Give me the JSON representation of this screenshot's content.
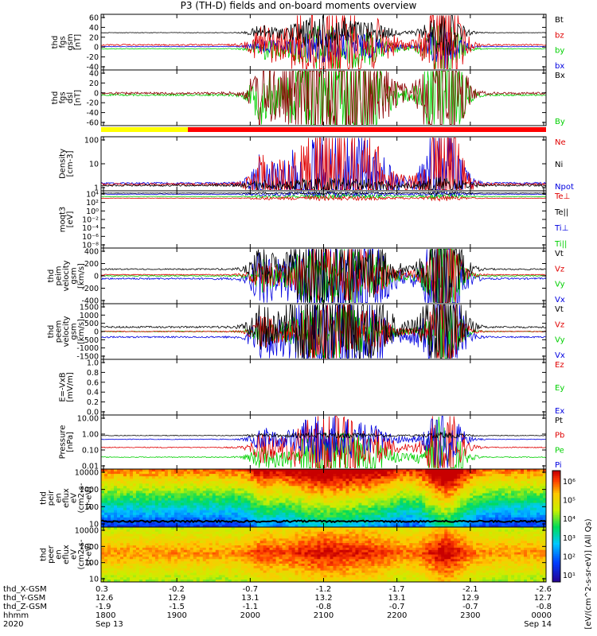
{
  "title": "P3 (TH-D) fields and on-board moments overview",
  "chart_data": {
    "type": "line",
    "panels": [
      {
        "id": "fgs-gsm",
        "ylabel": [
          "thd",
          "fgs",
          "gsm",
          "[nT]"
        ],
        "yticks": [
          "60",
          "40",
          "20",
          "0",
          "-20",
          "-40"
        ],
        "legend": [
          {
            "name": "Bt",
            "color": "#000000"
          },
          {
            "name": "bz",
            "color": "#e00000"
          },
          {
            "name": "by",
            "color": "#00d000"
          },
          {
            "name": "bx",
            "color": "#0000e0"
          }
        ]
      },
      {
        "id": "fgs-dsl",
        "ylabel": [
          "thd",
          "fgs",
          "dsl",
          "[nT]"
        ],
        "yticks": [
          "40",
          "20",
          "0",
          "-20",
          "-40",
          "-60"
        ],
        "legend": [
          {
            "name": "Bx",
            "color": "#000000"
          },
          {
            "name": "By",
            "color": "#00d000"
          }
        ]
      },
      {
        "id": "density",
        "ylabel": [
          "Density",
          "[cm-3]"
        ],
        "yticks": [
          "100",
          "10",
          "1"
        ],
        "legend": [
          {
            "name": "Ne",
            "color": "#e00000"
          },
          {
            "name": "Ni",
            "color": "#000000"
          },
          {
            "name": "Npot",
            "color": "#0000e0"
          }
        ]
      },
      {
        "id": "temperature",
        "ylabel": [
          "moqt3",
          "[eV]"
        ],
        "yticks": [
          "10⁴",
          "10²",
          "10⁰",
          "10⁻²",
          "10⁻⁴",
          "10⁻⁶",
          "10⁻⁸"
        ],
        "legend": [
          {
            "name": "Te⊥",
            "color": "#e00000"
          },
          {
            "name": "Te||",
            "color": "#000000"
          },
          {
            "name": "Ti⊥",
            "color": "#0000e0"
          },
          {
            "name": "Ti||",
            "color": "#00d000"
          }
        ]
      },
      {
        "id": "peim-velocity",
        "ylabel": [
          "thd",
          "peim",
          "velocity",
          "gsm",
          "[km/s]"
        ],
        "yticks": [
          "400",
          "200",
          "0",
          "-200",
          "-400"
        ],
        "legend": [
          {
            "name": "Vt",
            "color": "#000000"
          },
          {
            "name": "Vz",
            "color": "#e00000"
          },
          {
            "name": "Vy",
            "color": "#00d000"
          },
          {
            "name": "Vx",
            "color": "#0000e0"
          }
        ]
      },
      {
        "id": "peem-velocity",
        "ylabel": [
          "thd",
          "peem",
          "velocity",
          "gsm",
          "[km/s]"
        ],
        "yticks": [
          "1500",
          "1000",
          "500",
          "0",
          "-500",
          "-1000",
          "-1500"
        ],
        "legend": [
          {
            "name": "Vt",
            "color": "#000000"
          },
          {
            "name": "Vz",
            "color": "#e00000"
          },
          {
            "name": "Vy",
            "color": "#00d000"
          },
          {
            "name": "Vx",
            "color": "#0000e0"
          }
        ]
      },
      {
        "id": "efield",
        "ylabel": [
          "E=-VxB",
          "[mV/m]"
        ],
        "yticks": [
          "1.0",
          "0.8",
          "0.6",
          "0.4",
          "0.2",
          "0.0"
        ],
        "legend": [
          {
            "name": "Ez",
            "color": "#e00000"
          },
          {
            "name": "Ey",
            "color": "#00d000"
          },
          {
            "name": "Ex",
            "color": "#0000e0"
          }
        ]
      },
      {
        "id": "pressure",
        "ylabel": [
          "Pressure",
          "[nPa]"
        ],
        "yticks": [
          "10.00",
          "1.00",
          "0.10",
          "0.01"
        ],
        "legend": [
          {
            "name": "Pt",
            "color": "#000000"
          },
          {
            "name": "Pb",
            "color": "#e00000"
          },
          {
            "name": "Pe",
            "color": "#00d000"
          },
          {
            "name": "Pi",
            "color": "#0000e0"
          }
        ]
      },
      {
        "id": "peir-spectrogram",
        "ylabel": [
          "thd",
          "peir",
          "en",
          "eflux",
          "eV",
          "(cm2-s-",
          "sr-eV)"
        ],
        "yticks": [
          "10000",
          "1000",
          "100",
          "10"
        ]
      },
      {
        "id": "peer-spectrogram",
        "ylabel": [
          "thd",
          "peer",
          "en",
          "eflux",
          "eV",
          "(cm2-s-",
          "sr-eV)"
        ],
        "yticks": [
          "10000",
          "1000",
          "100",
          "10"
        ]
      }
    ],
    "colorbar": {
      "label": "[eV/(cm^2-s-sr-eV)] (All Qs)",
      "ticks": [
        "10⁶",
        "10⁵",
        "10⁴",
        "10³",
        "10²",
        "10¹"
      ]
    },
    "x_axis": {
      "rows": [
        {
          "label": "thd_X-GSM",
          "values": [
            "0.3",
            "-0.2",
            "-0.7",
            "-1.2",
            "-1.7",
            "-2.1",
            "-2.6"
          ]
        },
        {
          "label": "thd_Y-GSM",
          "values": [
            "12.6",
            "12.9",
            "13.1",
            "13.2",
            "13.1",
            "12.9",
            "12.7"
          ]
        },
        {
          "label": "thd_Z-GSM",
          "values": [
            "-1.9",
            "-1.5",
            "-1.1",
            "-0.8",
            "-0.7",
            "-0.7",
            "-0.8"
          ]
        },
        {
          "label": "hhmm",
          "values": [
            "1800",
            "1900",
            "2000",
            "2100",
            "2200",
            "2300",
            "0000"
          ]
        },
        {
          "label": "2020",
          "values": [
            "Sep 13",
            "",
            "",
            "",
            "",
            "",
            "Sep 14"
          ]
        }
      ]
    }
  }
}
